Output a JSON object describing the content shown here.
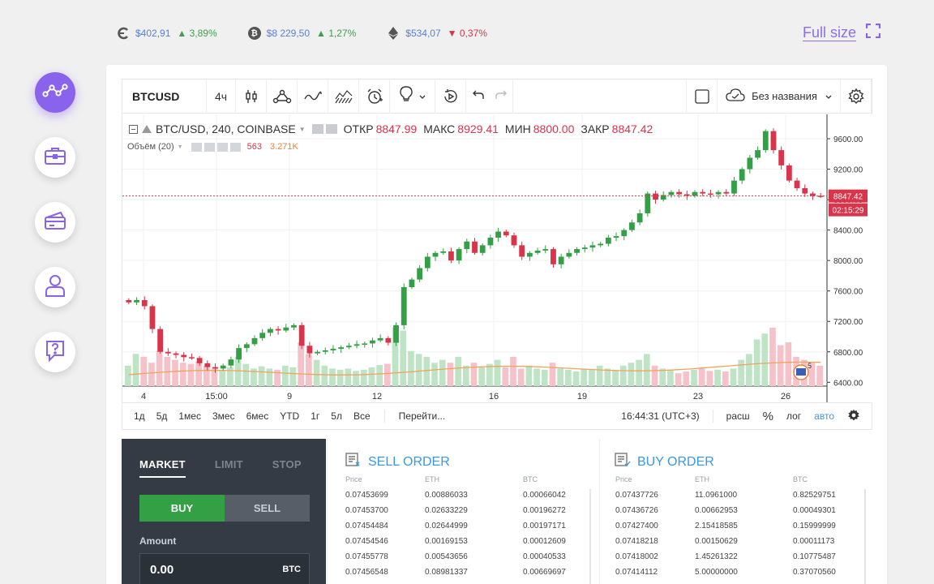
{
  "ticker": [
    {
      "icon": "dash-icon",
      "price": "$402,91",
      "change": "▲ 3,89%",
      "dir": "up"
    },
    {
      "icon": "bitcoin-icon",
      "price": "$8 229,50",
      "change": "▲ 1,27%",
      "dir": "up"
    },
    {
      "icon": "ethereum-icon",
      "price": "$534,07",
      "change": "▼ 0,37%",
      "dir": "down"
    }
  ],
  "full_size_label": "Full size",
  "toolbar": {
    "symbol": "BTCUSD",
    "interval": "4ч",
    "layout_name": "Без названия"
  },
  "legend": {
    "pair": "BTC/USD, 240, COINBASE",
    "open_label": "ОТКР",
    "open": "8847.99",
    "high_label": "МАКС",
    "high": "8929.41",
    "low_label": "МИН",
    "low": "8800.00",
    "close_label": "ЗАКР",
    "close": "8847.42",
    "volume_label": "Объём (20)",
    "volume_value": "563",
    "volume_ma": "3.271K"
  },
  "price_tag": "8847.42",
  "time_tag": "02:15:29",
  "periods": [
    "1д",
    "5д",
    "1мес",
    "3мес",
    "6мес",
    "YTD",
    "1г",
    "5л",
    "Все"
  ],
  "goto_label": "Перейти...",
  "bottom_right": {
    "time": "16:44:31 (UTC+3)",
    "extend": "расш",
    "percent": "%",
    "log": "лог",
    "auto": "авто"
  },
  "colors": {
    "accent": "#8a63ec",
    "up": "#33a045",
    "down": "#d9344a",
    "link": "#3a98dc"
  },
  "trade": {
    "tabs": [
      "MARKET",
      "LIMIT",
      "STOP"
    ],
    "buy_label": "BUY",
    "sell_label": "SELL",
    "amount_label": "Amount",
    "amount_value": "0.00",
    "amount_unit": "BTC"
  },
  "sell_order": {
    "title": "SELL ORDER",
    "headers": [
      "Price",
      "ETH",
      "BTC"
    ],
    "rows": [
      [
        "0.07453699",
        "0.00886033",
        "0.00066042"
      ],
      [
        "0.07453700",
        "0.02633229",
        "0.00196272"
      ],
      [
        "0.07454484",
        "0.02644999",
        "0.00197171"
      ],
      [
        "0.07454546",
        "0.00169153",
        "0.00012609"
      ],
      [
        "0.07455778",
        "0.00543656",
        "0.00040533"
      ],
      [
        "0.07456548",
        "0.08981337",
        "0.00669697"
      ]
    ]
  },
  "buy_order": {
    "title": "BUY ORDER",
    "headers": [
      "Price",
      "ETH",
      "BTC"
    ],
    "rows": [
      [
        "0.07437726",
        "11.0961000",
        "0.82529751"
      ],
      [
        "0.07436726",
        "0.00662953",
        "0.00049301"
      ],
      [
        "0.07427400",
        "2.15418585",
        "0.15999999"
      ],
      [
        "0.07418218",
        "0.00150629",
        "0.00011173"
      ],
      [
        "0.07418002",
        "1.45261322",
        "0.10775487"
      ],
      [
        "0.07414112",
        "5.00000000",
        "0.37070560"
      ]
    ]
  },
  "chart_data": {
    "type": "candlestick",
    "y_ticks": [
      "9600.00",
      "9200.00",
      "8800.00",
      "8400.00",
      "8000.00",
      "7600.00",
      "7200.00",
      "6800.00",
      "6400.00"
    ],
    "ylim": [
      6350,
      9920
    ],
    "x_tick_labels": [
      "4",
      "15:00",
      "9",
      "12",
      "16",
      "19",
      "23",
      "26"
    ],
    "last_price": 8847.42,
    "path": [
      7450,
      7480,
      7400,
      7100,
      6800,
      6780,
      6760,
      6730,
      6720,
      6650,
      6600,
      6580,
      6620,
      6700,
      6850,
      6900,
      6980,
      7050,
      7100,
      7080,
      7120,
      7150,
      6880,
      6780,
      6800,
      6820,
      6840,
      6860,
      6880,
      6900,
      6910,
      6950,
      6980,
      6920,
      7150,
      7650,
      7750,
      7900,
      8050,
      8100,
      8120,
      8000,
      8150,
      8250,
      8100,
      8200,
      8300,
      8380,
      8330,
      8200,
      8050,
      8100,
      8130,
      8150,
      7950,
      8050,
      8100,
      8150,
      8170,
      8200,
      8220,
      8300,
      8320,
      8400,
      8500,
      8620,
      8880,
      8800,
      8860,
      8900,
      8870,
      8850,
      8900,
      8880,
      8870,
      8900,
      8880,
      9050,
      9200,
      9350,
      9450,
      9700,
      9450,
      9250,
      9050,
      8950,
      8880,
      8850,
      8847
    ],
    "volumes": [
      0.35,
      0.55,
      0.5,
      0.4,
      0.6,
      0.5,
      0.45,
      0.4,
      0.38,
      0.42,
      0.35,
      0.3,
      0.28,
      0.32,
      0.5,
      0.38,
      0.3,
      0.34,
      0.3,
      0.28,
      0.35,
      0.32,
      0.75,
      0.55,
      0.45,
      0.35,
      0.3,
      0.28,
      0.3,
      0.26,
      0.28,
      0.32,
      0.36,
      0.38,
      1.0,
      0.95,
      0.6,
      0.55,
      0.5,
      0.4,
      0.45,
      0.4,
      0.5,
      0.35,
      0.4,
      0.32,
      0.38,
      0.45,
      0.32,
      0.5,
      0.3,
      0.35,
      0.3,
      0.28,
      0.4,
      0.3,
      0.28,
      0.25,
      0.3,
      0.28,
      0.35,
      0.3,
      0.28,
      0.35,
      0.4,
      0.45,
      0.55,
      0.35,
      0.3,
      0.28,
      0.22,
      0.25,
      0.28,
      0.3,
      0.26,
      0.28,
      0.25,
      0.3,
      0.45,
      0.55,
      0.8,
      0.9,
      1.0,
      0.7,
      0.75,
      0.5,
      0.45,
      0.4,
      0.35
    ]
  }
}
